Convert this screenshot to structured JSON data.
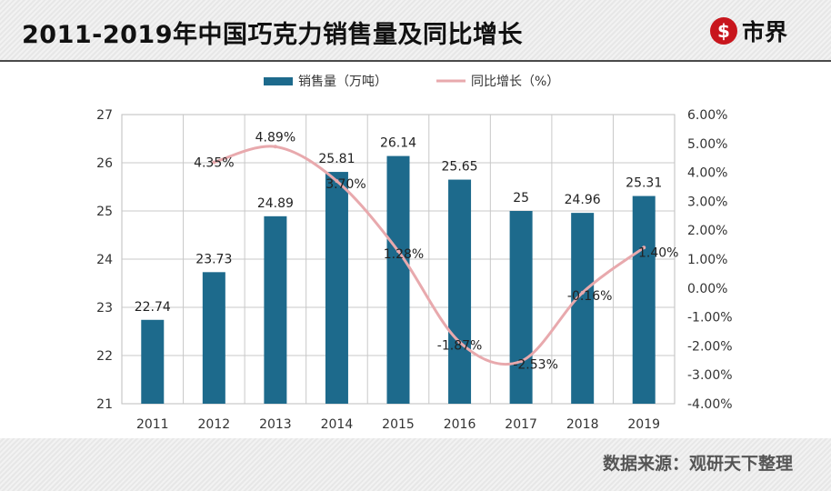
{
  "header": {
    "title": "2011-2019年中国巧克力销售量及同比增长",
    "logo_symbol": "$",
    "logo_text": "市界"
  },
  "footer": {
    "source": "数据来源：观研天下整理"
  },
  "colors": {
    "bar": "#1d6a8c",
    "line": "#e8a9ad",
    "grid": "#c8c8c8",
    "axis_text": "#333333"
  },
  "chart_data": {
    "type": "bar+line",
    "title": "",
    "categories": [
      "2011",
      "2012",
      "2013",
      "2014",
      "2015",
      "2016",
      "2017",
      "2018",
      "2019"
    ],
    "series": [
      {
        "name": "销售量（万吨）",
        "type": "bar",
        "axis": "left",
        "values": [
          22.74,
          23.73,
          24.89,
          25.81,
          26.14,
          25.65,
          25,
          24.96,
          25.31
        ],
        "labels": [
          "22.74",
          "23.73",
          "24.89",
          "25.81",
          "26.14",
          "25.65",
          "25",
          "24.96",
          "25.31"
        ]
      },
      {
        "name": "同比增长（%）",
        "type": "line",
        "axis": "right",
        "x": [
          "2012",
          "2013",
          "2014",
          "2015",
          "2016",
          "2017",
          "2018",
          "2019"
        ],
        "values": [
          4.35,
          4.89,
          3.7,
          1.28,
          -1.87,
          -2.53,
          -0.16,
          1.4
        ],
        "labels": [
          "4.35%",
          "4.89%",
          "3.70%",
          "1.28%",
          "-1.87%",
          "-2.53%",
          "-0.16%",
          "1.40%"
        ]
      }
    ],
    "y_left": {
      "min": 21,
      "max": 27,
      "ticks": [
        21,
        22,
        23,
        24,
        25,
        26,
        27
      ]
    },
    "y_right": {
      "min": -4,
      "max": 6,
      "ticks": [
        -4,
        -3,
        -2,
        -1,
        0,
        1,
        2,
        3,
        4,
        5,
        6
      ],
      "tick_labels": [
        "-4.00%",
        "-3.00%",
        "-2.00%",
        "-1.00%",
        "0.00%",
        "1.00%",
        "2.00%",
        "3.00%",
        "4.00%",
        "5.00%",
        "6.00%"
      ]
    },
    "grid": true,
    "legend_position": "top"
  }
}
